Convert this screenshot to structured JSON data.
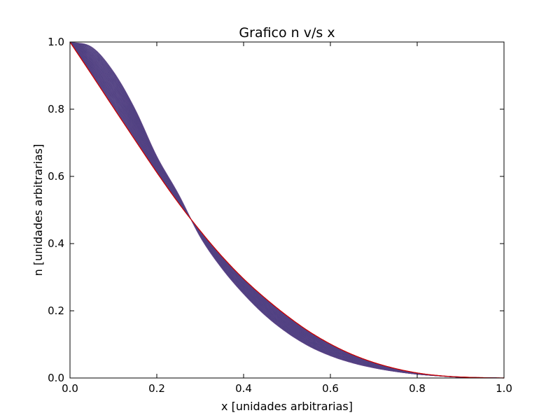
{
  "chart_data": {
    "type": "line",
    "title": "Grafico n v/s x",
    "xlabel": "x [unidades arbitrarias]",
    "ylabel": "n [unidades arbitrarias]",
    "xlim": [
      0.0,
      1.0
    ],
    "ylim": [
      0.0,
      1.0
    ],
    "xticks": [
      0.0,
      0.2,
      0.4,
      0.6,
      0.8,
      1.0
    ],
    "yticks": [
      0.0,
      0.2,
      0.4,
      0.6,
      0.8,
      1.0
    ],
    "xtick_labels": [
      "0.0",
      "0.2",
      "0.4",
      "0.6",
      "0.8",
      "1.0"
    ],
    "ytick_labels": [
      "0.0",
      "0.2",
      "0.4",
      "0.6",
      "0.8",
      "1.0"
    ],
    "grid": false,
    "legend": false,
    "x": [
      0.0,
      0.05,
      0.1,
      0.15,
      0.2,
      0.25,
      0.3,
      0.35,
      0.4,
      0.45,
      0.5,
      0.55,
      0.6,
      0.65,
      0.7,
      0.75,
      0.8,
      0.85,
      0.9,
      0.95,
      1.0
    ],
    "series": [
      {
        "color": "#cc0000",
        "values": [
          1.0,
          0.903,
          0.805,
          0.708,
          0.612,
          0.521,
          0.438,
          0.362,
          0.295,
          0.237,
          0.185,
          0.139,
          0.101,
          0.07,
          0.046,
          0.028,
          0.015,
          0.007,
          0.003,
          0.001,
          0.0
        ]
      },
      {
        "color": "#4a3f8a",
        "values": [
          1.0,
          0.985,
          0.912,
          0.8,
          0.66,
          0.547,
          0.42,
          0.326,
          0.25,
          0.186,
          0.135,
          0.095,
          0.066,
          0.045,
          0.03,
          0.019,
          0.011,
          0.006,
          0.002,
          0.001,
          0.0
        ]
      }
    ]
  }
}
